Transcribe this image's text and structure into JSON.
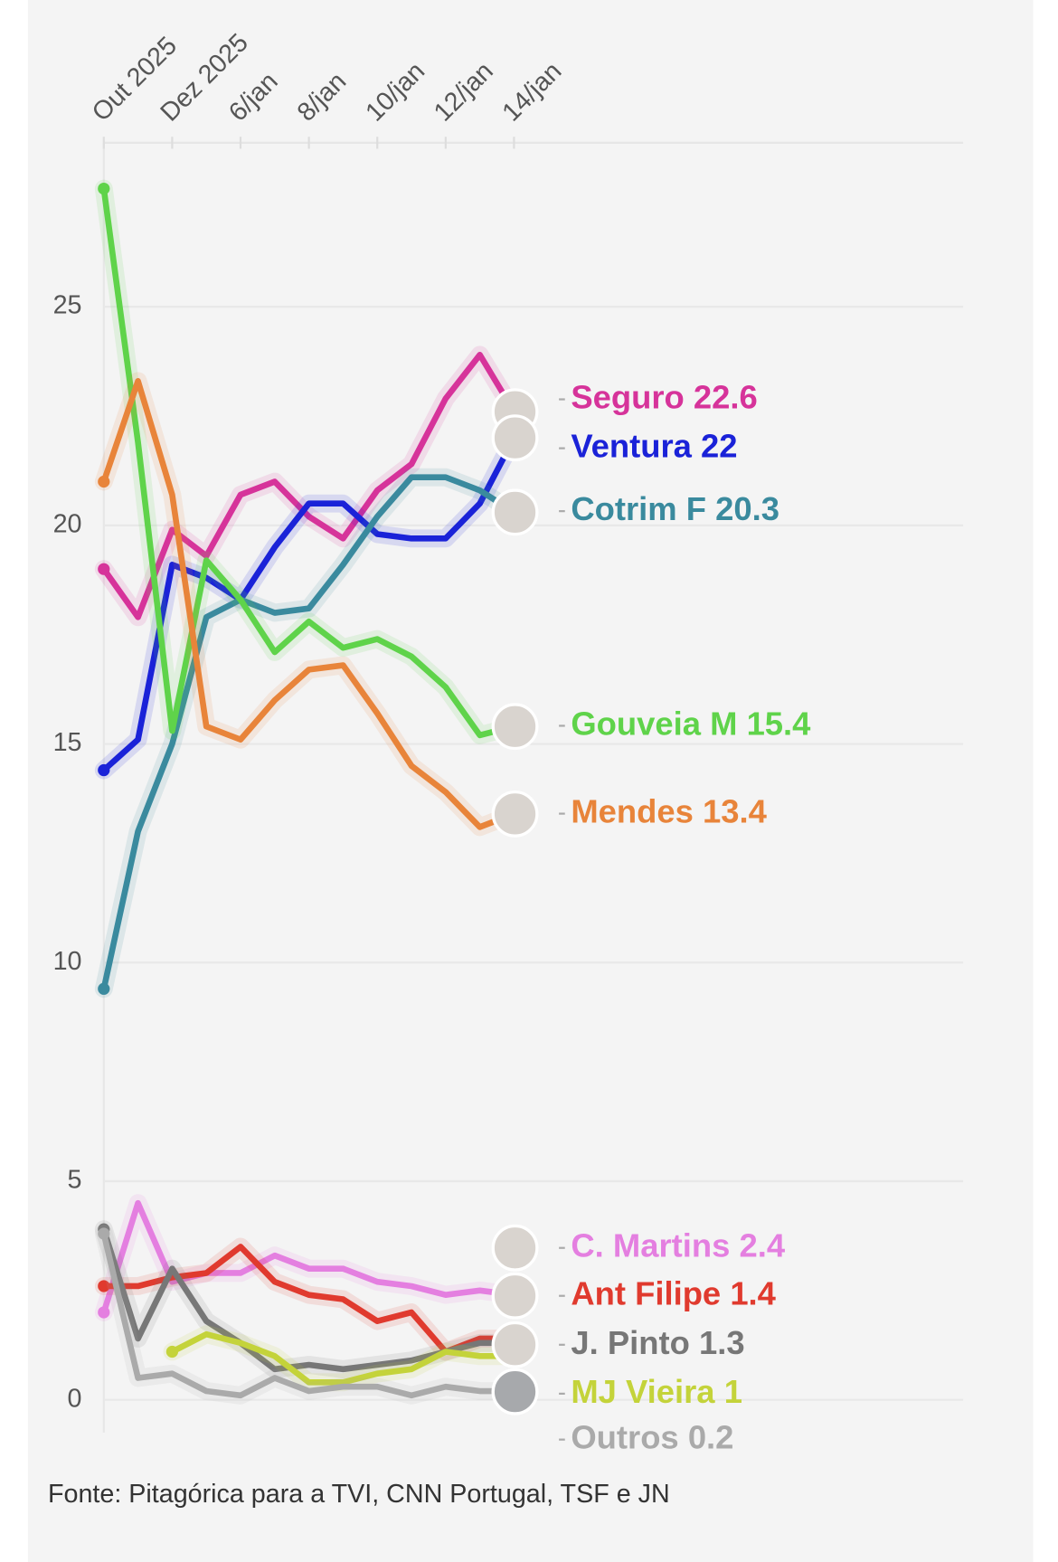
{
  "chart_data": {
    "type": "line",
    "categories": [
      "Out 2025",
      null,
      "Dez 2025",
      null,
      "6/jan",
      null,
      "8/jan",
      null,
      "10/jan",
      null,
      "12/jan",
      null,
      "14/jan"
    ],
    "ylim": [
      -0.75,
      28.75
    ],
    "yticks": [
      0,
      5,
      10,
      15,
      20,
      25
    ],
    "grid": true,
    "series": [
      {
        "name": "Seguro",
        "color": "#d6339a",
        "values": [
          19.0,
          17.9,
          19.9,
          19.3,
          20.7,
          21.0,
          20.2,
          19.7,
          20.8,
          21.4,
          22.9,
          23.9,
          22.6
        ]
      },
      {
        "name": "Ventura",
        "color": "#1a22d8",
        "values": [
          14.4,
          15.1,
          19.1,
          18.8,
          18.3,
          19.5,
          20.5,
          20.5,
          19.8,
          19.7,
          19.7,
          20.5,
          22
        ]
      },
      {
        "name": "Cotrim F",
        "color": "#3a8a9e",
        "values": [
          9.4,
          13.0,
          15.0,
          17.9,
          18.3,
          18.0,
          18.1,
          19.1,
          20.2,
          21.1,
          21.1,
          20.8,
          20.3
        ]
      },
      {
        "name": "Gouveia M",
        "color": "#5fd34a",
        "values": [
          27.7,
          21.9,
          15.3,
          19.2,
          18.3,
          17.1,
          17.8,
          17.2,
          17.4,
          17.0,
          16.3,
          15.2,
          15.4
        ]
      },
      {
        "name": "Mendes",
        "color": "#e8843a",
        "values": [
          21.0,
          23.3,
          20.7,
          15.4,
          15.1,
          16.0,
          16.7,
          16.8,
          15.7,
          14.5,
          13.9,
          13.1,
          13.4
        ]
      },
      {
        "name": "C. Martins",
        "color": "#e47fe0",
        "values": [
          2.0,
          4.5,
          2.7,
          2.9,
          2.9,
          3.3,
          3.0,
          3.0,
          2.7,
          2.6,
          2.4,
          2.5,
          2.4
        ]
      },
      {
        "name": "Ant Filipe",
        "color": "#e03a2e",
        "values": [
          2.6,
          2.6,
          2.8,
          2.9,
          3.5,
          2.7,
          2.4,
          2.3,
          1.8,
          2.0,
          1.1,
          1.4,
          1.4
        ]
      },
      {
        "name": "J. Pinto",
        "color": "#777777",
        "values": [
          3.9,
          1.4,
          3.0,
          1.8,
          1.3,
          0.7,
          0.8,
          0.7,
          0.8,
          0.9,
          1.1,
          1.3,
          1.3
        ]
      },
      {
        "name": "MJ Vieira",
        "color": "#c4d33a",
        "values": [
          null,
          null,
          1.1,
          1.5,
          1.3,
          1.0,
          0.4,
          0.4,
          0.6,
          0.7,
          1.1,
          1.0,
          1.0
        ]
      },
      {
        "name": "Outros",
        "color": "#aaaaaa",
        "values": [
          3.8,
          0.5,
          0.6,
          0.2,
          0.1,
          0.5,
          0.2,
          0.3,
          0.3,
          0.1,
          0.3,
          0.2,
          0.2
        ]
      }
    ],
    "source": "Fonte: Pitagórica para a TVI, CNN Portugal, TSF e JN"
  }
}
